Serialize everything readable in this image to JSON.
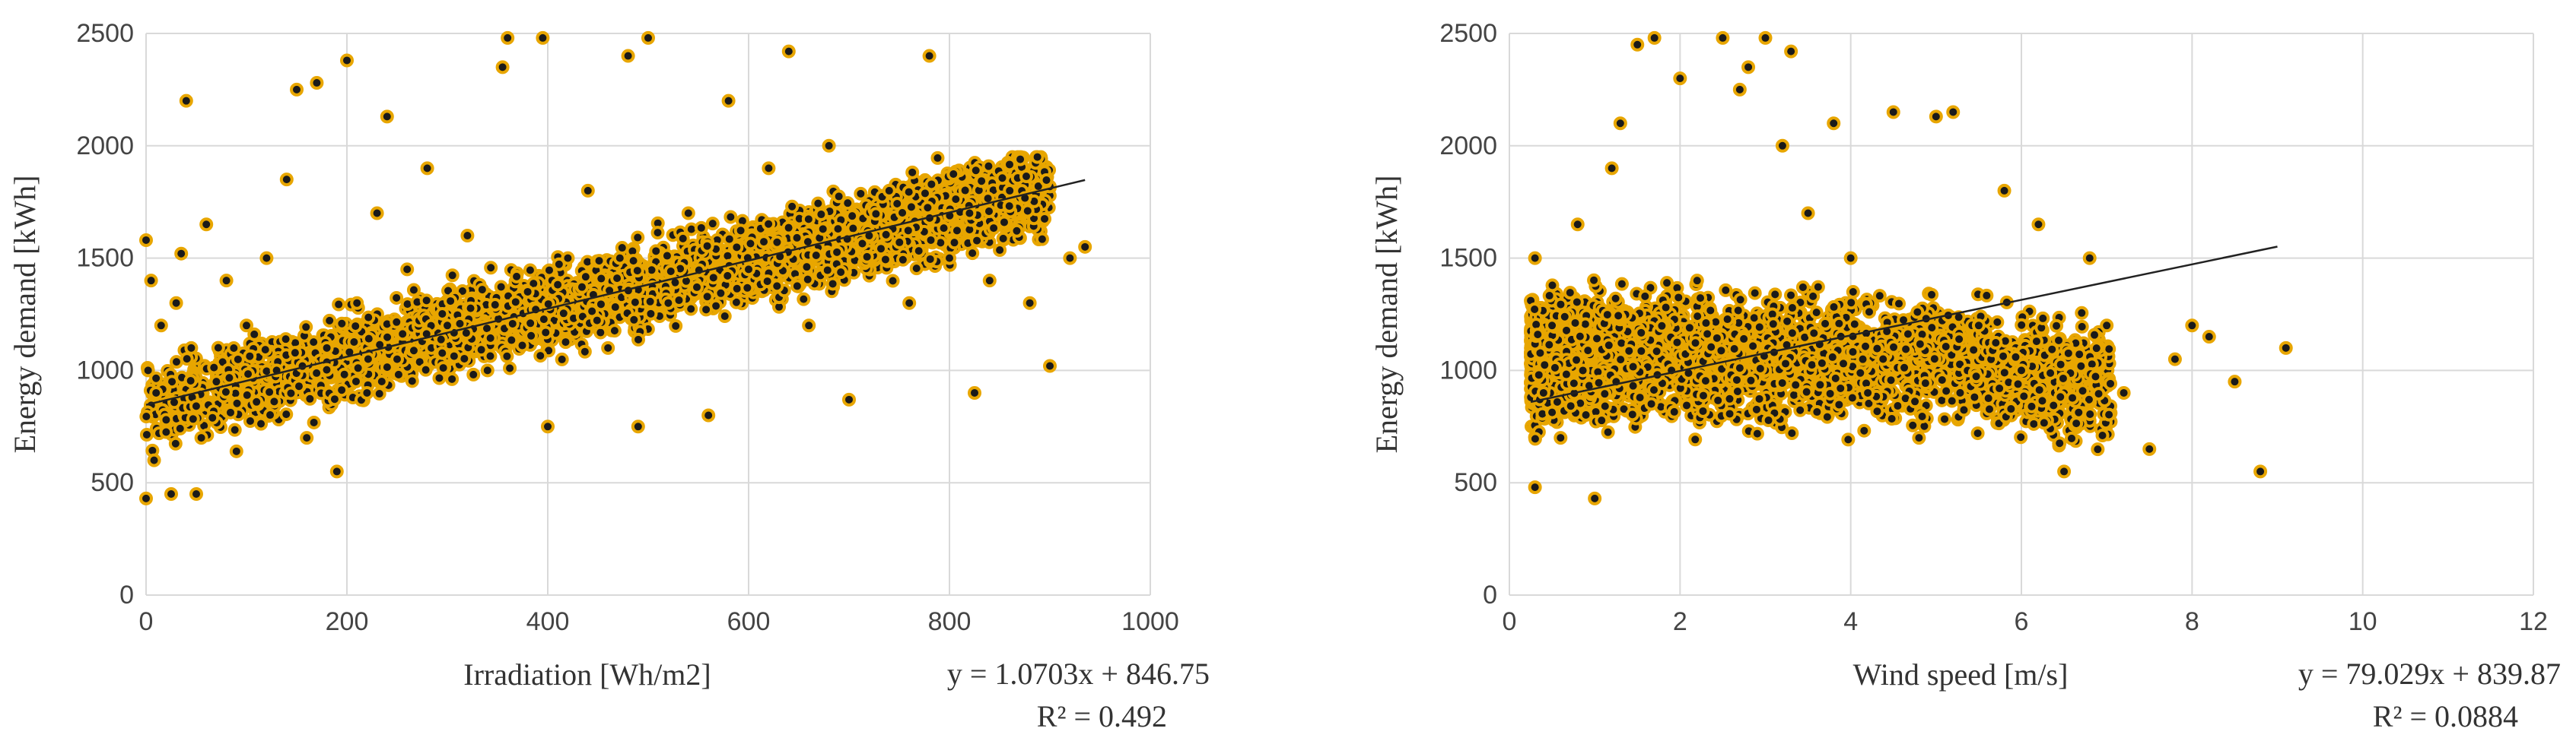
{
  "colors": {
    "marker_fill": "#1a1a1a",
    "marker_edge": "#e8a600",
    "trendline": "#222222",
    "grid": "#d9d9d9"
  },
  "chart_data": [
    {
      "type": "scatter",
      "xlabel": "Irradiation [Wh/m2]",
      "ylabel": "Energy demand [kWh]",
      "xlim": [
        0,
        1000
      ],
      "ylim": [
        0,
        2500
      ],
      "xticks": [
        "0",
        "200",
        "400",
        "600",
        "800",
        "1000"
      ],
      "yticks": [
        "0",
        "500",
        "1000",
        "1500",
        "2000",
        "2500"
      ],
      "grid": true,
      "trendline": {
        "slope": 1.0703,
        "intercept": 846.75,
        "x_range": [
          0,
          935
        ]
      },
      "equation": "y = 1.0703x + 846.75",
      "r2": "R² = 0.492",
      "points": [
        [
          0,
          430
        ],
        [
          0,
          1580
        ],
        [
          2,
          1000
        ],
        [
          5,
          1400
        ],
        [
          8,
          600
        ],
        [
          10,
          900
        ],
        [
          15,
          1200
        ],
        [
          20,
          780
        ],
        [
          25,
          450
        ],
        [
          30,
          1300
        ],
        [
          35,
          1520
        ],
        [
          40,
          2200
        ],
        [
          45,
          1100
        ],
        [
          50,
          450
        ],
        [
          55,
          700
        ],
        [
          60,
          1650
        ],
        [
          70,
          950
        ],
        [
          80,
          1400
        ],
        [
          90,
          640
        ],
        [
          100,
          1200
        ],
        [
          110,
          860
        ],
        [
          120,
          1500
        ],
        [
          130,
          1000
        ],
        [
          140,
          1850
        ],
        [
          150,
          2250
        ],
        [
          160,
          700
        ],
        [
          170,
          2280
        ],
        [
          180,
          1100
        ],
        [
          190,
          550
        ],
        [
          200,
          2380
        ],
        [
          210,
          1300
        ],
        [
          220,
          900
        ],
        [
          230,
          1700
        ],
        [
          240,
          2130
        ],
        [
          250,
          1050
        ],
        [
          260,
          1450
        ],
        [
          280,
          1900
        ],
        [
          300,
          1200
        ],
        [
          320,
          1600
        ],
        [
          340,
          1000
        ],
        [
          355,
          2350
        ],
        [
          360,
          2480
        ],
        [
          380,
          1350
        ],
        [
          395,
          2480
        ],
        [
          400,
          750
        ],
        [
          420,
          1500
        ],
        [
          440,
          1800
        ],
        [
          460,
          1100
        ],
        [
          480,
          2400
        ],
        [
          490,
          750
        ],
        [
          500,
          2480
        ],
        [
          520,
          1300
        ],
        [
          540,
          1700
        ],
        [
          560,
          800
        ],
        [
          580,
          2200
        ],
        [
          600,
          1450
        ],
        [
          620,
          1900
        ],
        [
          640,
          2420
        ],
        [
          660,
          1200
        ],
        [
          680,
          2000
        ],
        [
          700,
          870
        ],
        [
          720,
          1600
        ],
        [
          740,
          1800
        ],
        [
          760,
          1300
        ],
        [
          780,
          2400
        ],
        [
          800,
          1500
        ],
        [
          820,
          1700
        ],
        [
          825,
          900
        ],
        [
          840,
          1400
        ],
        [
          860,
          1800
        ],
        [
          880,
          1300
        ],
        [
          900,
          1020
        ],
        [
          920,
          1500
        ],
        [
          935,
          1550
        ]
      ]
    },
    {
      "type": "scatter",
      "xlabel": "Wind speed [m/s]",
      "ylabel": "Energy demand [kWh]",
      "xlim": [
        0,
        12
      ],
      "ylim": [
        0,
        2500
      ],
      "xticks": [
        "0",
        "2",
        "4",
        "6",
        "8",
        "10",
        "12"
      ],
      "yticks": [
        "0",
        "500",
        "1000",
        "1500",
        "2000",
        "2500"
      ],
      "grid": true,
      "trendline": {
        "slope": 79.029,
        "intercept": 839.87,
        "x_range": [
          0.25,
          9.0
        ]
      },
      "equation": "y = 79.029x + 839.87",
      "r2": "R² = 0.0884",
      "points": [
        [
          0.3,
          480
        ],
        [
          0.3,
          1500
        ],
        [
          0.4,
          900
        ],
        [
          0.5,
          1200
        ],
        [
          0.6,
          700
        ],
        [
          0.8,
          1650
        ],
        [
          1.0,
          430
        ],
        [
          1.2,
          1900
        ],
        [
          1.3,
          2100
        ],
        [
          1.5,
          2450
        ],
        [
          1.7,
          2480
        ],
        [
          1.9,
          1000
        ],
        [
          2.0,
          2300
        ],
        [
          2.2,
          1400
        ],
        [
          2.5,
          2480
        ],
        [
          2.7,
          2250
        ],
        [
          2.8,
          2350
        ],
        [
          3.0,
          2480
        ],
        [
          3.2,
          2000
        ],
        [
          3.3,
          2420
        ],
        [
          3.5,
          1700
        ],
        [
          3.8,
          2100
        ],
        [
          4.0,
          1500
        ],
        [
          4.2,
          900
        ],
        [
          4.5,
          2150
        ],
        [
          4.8,
          700
        ],
        [
          5.0,
          2130
        ],
        [
          5.2,
          2150
        ],
        [
          5.5,
          1200
        ],
        [
          5.8,
          1800
        ],
        [
          6.0,
          1000
        ],
        [
          6.2,
          1650
        ],
        [
          6.5,
          550
        ],
        [
          6.8,
          1500
        ],
        [
          7.0,
          1200
        ],
        [
          7.2,
          900
        ],
        [
          7.5,
          650
        ],
        [
          7.8,
          1050
        ],
        [
          8.0,
          1200
        ],
        [
          8.2,
          1150
        ],
        [
          8.5,
          950
        ],
        [
          8.8,
          550
        ],
        [
          9.1,
          1100
        ]
      ]
    }
  ]
}
